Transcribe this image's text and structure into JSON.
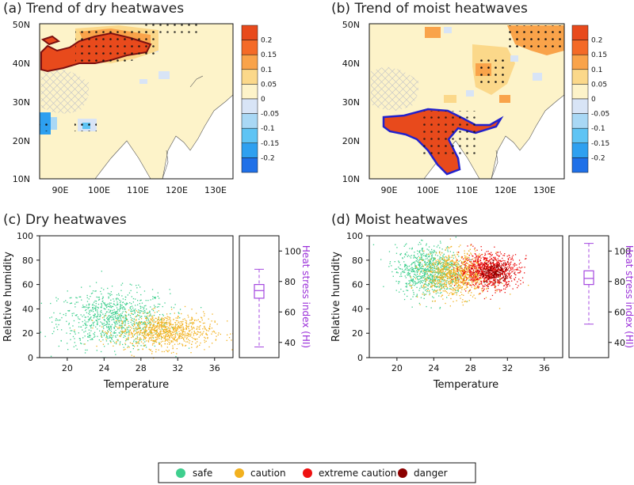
{
  "colors": {
    "safe": "#3fcf8e",
    "caution": "#f2b11f",
    "extreme_caution": "#ee1111",
    "danger": "#8b0000",
    "land_base": "#fdf3c9",
    "china_hatch": "#c9c9c9",
    "outline_dry": "#7a1010",
    "outline_moist": "#2222cc",
    "boxplot": "#a548e0",
    "scale": [
      "#1f70e8",
      "#2ea0f0",
      "#5fc4f4",
      "#a9d8f5",
      "#d8e4f6",
      "#fdf3c9",
      "#fbd88a",
      "#f9a34a",
      "#f46a27",
      "#e84a1c"
    ]
  },
  "maps": [
    {
      "title": "(a) Trend of dry heatwaves",
      "lat_labels": [
        "50N",
        "40N",
        "30N",
        "20N",
        "10N"
      ],
      "lon_labels": [
        "90E",
        "100E",
        "110E",
        "120E",
        "130E"
      ],
      "colorbar_labels": [
        "0.2",
        "0.15",
        "0.1",
        "0.05",
        "0",
        "-0.05",
        "-0.1",
        "-0.15",
        "-0.2"
      ]
    },
    {
      "title": "(b) Trend of moist heatwaves",
      "lat_labels": [
        "50N",
        "40N",
        "30N",
        "20N",
        "10N"
      ],
      "lon_labels": [
        "90E",
        "100E",
        "110E",
        "120E",
        "130E"
      ],
      "colorbar_labels": [
        "0.2",
        "0.15",
        "0.1",
        "0.05",
        "0",
        "-0.05",
        "-0.1",
        "-0.15",
        "-0.2"
      ]
    }
  ],
  "chart_data": [
    {
      "type": "scatter",
      "title": "(c) Dry heatwaves",
      "xlabel": "Temperature",
      "ylabel": "Relative humidity",
      "xlim": [
        17,
        38
      ],
      "ylim": [
        0,
        100
      ],
      "xticks": [
        20,
        24,
        28,
        32,
        36
      ],
      "yticks": [
        0,
        20,
        40,
        60,
        80,
        100
      ],
      "clusters": [
        {
          "category": "safe",
          "center": [
            25.0,
            32
          ],
          "spread": [
            3.0,
            12
          ]
        },
        {
          "category": "caution",
          "center": [
            30.5,
            22
          ],
          "spread": [
            2.6,
            7
          ]
        }
      ],
      "hi_axis": {
        "label": "Heat stress index (HI)",
        "ticks": [
          40,
          60,
          80,
          100
        ],
        "range": [
          30,
          110
        ]
      },
      "hi_boxplot": {
        "min": 37,
        "q1": 69,
        "median": 74,
        "q3": 78,
        "max": 88
      }
    },
    {
      "type": "scatter",
      "title": "(d) Moist heatwaves",
      "xlabel": "Temperature",
      "ylabel": "Relative humidity",
      "xlim": [
        17,
        38
      ],
      "ylim": [
        0,
        100
      ],
      "xticks": [
        20,
        24,
        28,
        32,
        36
      ],
      "yticks": [
        0,
        20,
        40,
        60,
        80,
        100
      ],
      "clusters": [
        {
          "category": "safe",
          "center": [
            23.5,
            72
          ],
          "spread": [
            1.8,
            10
          ]
        },
        {
          "category": "caution",
          "center": [
            26.5,
            68
          ],
          "spread": [
            1.8,
            9
          ]
        },
        {
          "category": "extreme_caution",
          "center": [
            30.0,
            72
          ],
          "spread": [
            1.6,
            7
          ]
        },
        {
          "category": "danger",
          "center": [
            30.5,
            70
          ],
          "spread": [
            0.8,
            4
          ]
        }
      ],
      "hi_axis": {
        "label": "Heat stress index (HI)",
        "ticks": [
          40,
          60,
          80,
          100
        ],
        "range": [
          30,
          110
        ]
      },
      "hi_boxplot": {
        "min": 52,
        "q1": 78,
        "median": 82,
        "q3": 87,
        "max": 105
      }
    }
  ],
  "legend": [
    {
      "category": "safe",
      "label": "safe"
    },
    {
      "category": "caution",
      "label": "caution"
    },
    {
      "category": "extreme_caution",
      "label": "extreme caution"
    },
    {
      "category": "danger",
      "label": "danger"
    }
  ]
}
